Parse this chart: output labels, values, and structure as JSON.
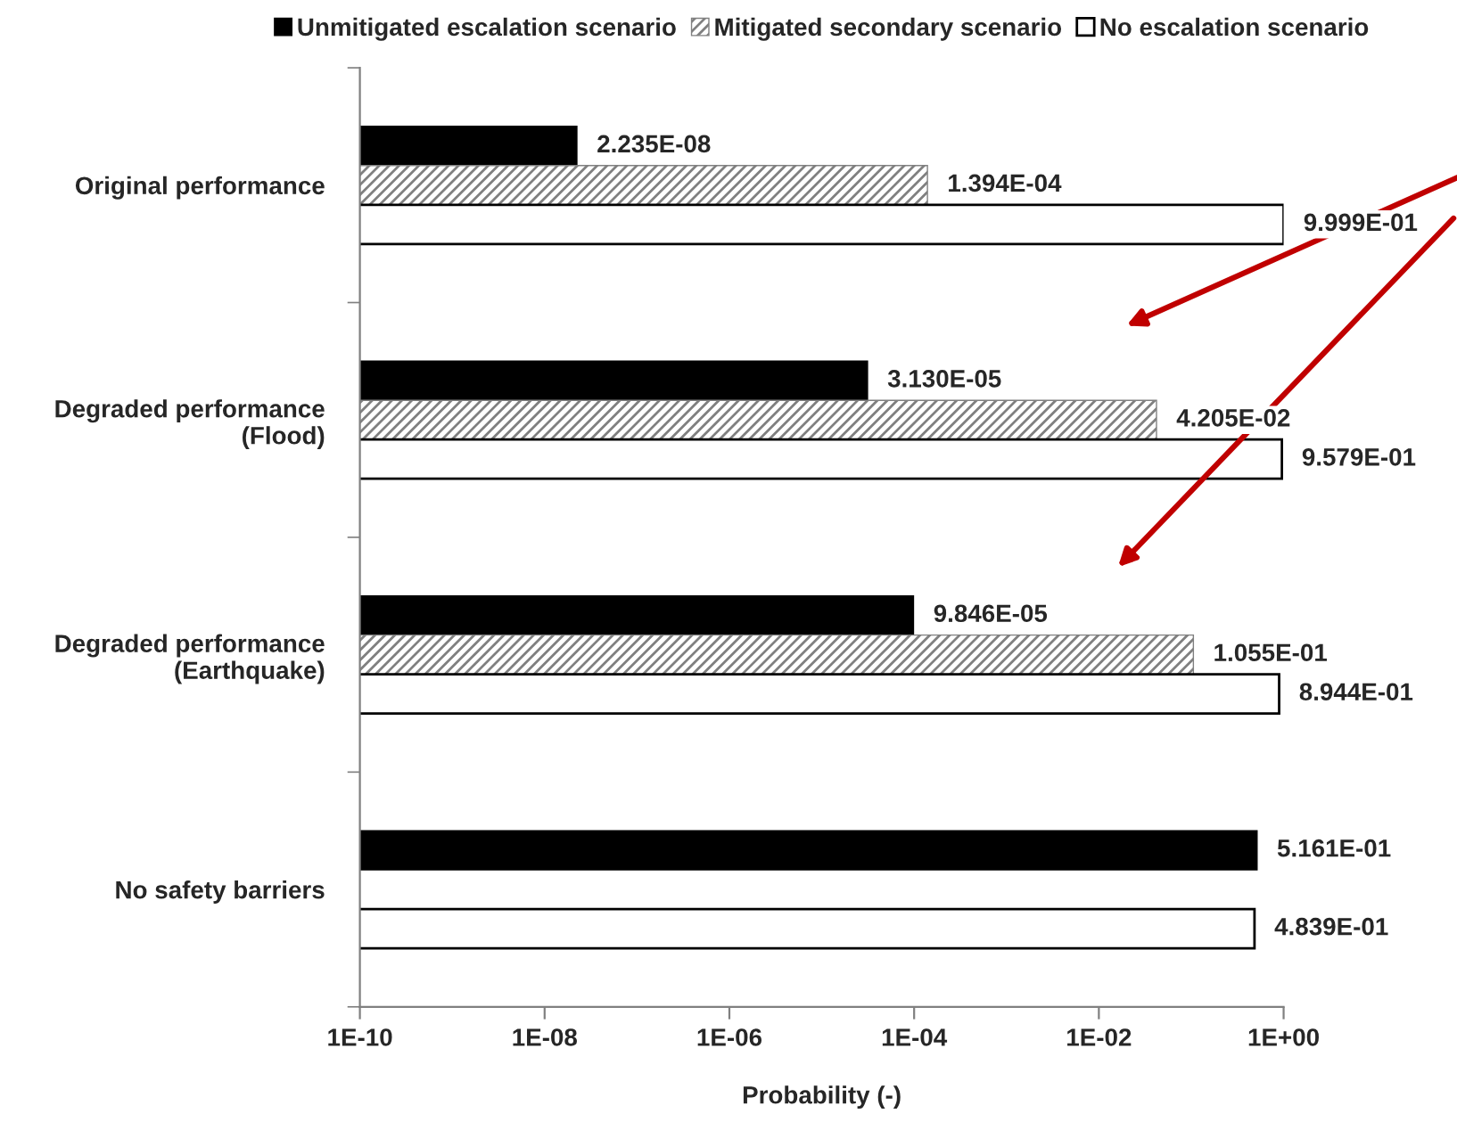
{
  "chart_data": {
    "type": "bar",
    "orientation": "horizontal",
    "log": "x",
    "categories": [
      "Original performance",
      "Degraded performance\n(Flood)",
      "Degraded performance\n(Earthquake)",
      "No safety barriers"
    ],
    "series": [
      {
        "name": "Unmitigated escalation scenario",
        "color": "#000000",
        "values": [
          2.235e-08,
          3.13e-05,
          9.846e-05,
          0.5161
        ],
        "value_labels": [
          "2.235E-08",
          "3.130E-05",
          "9.846E-05",
          "5.161E-01"
        ]
      },
      {
        "name": "Mitigated secondary scenario",
        "color": "#808080",
        "values": [
          0.0001394,
          0.04205,
          0.1055,
          null
        ],
        "value_labels": [
          "1.394E-04",
          "4.205E-02",
          "1.055E-01",
          null
        ]
      },
      {
        "name": "No escalation scenario",
        "color": "#ffffff",
        "values": [
          0.9999,
          0.9579,
          0.8944,
          0.4839
        ],
        "value_labels": [
          "9.999E-01",
          "9.579E-01",
          "8.944E-01",
          "4.839E-01"
        ]
      }
    ],
    "xlabel": "Probability (-)",
    "xlim": [
      1e-10,
      1
    ],
    "xticks": [
      {
        "value": 1e-10,
        "label": "1E-10"
      },
      {
        "value": 1e-08,
        "label": "1E-08"
      },
      {
        "value": 1e-06,
        "label": "1E-06"
      },
      {
        "value": 0.0001,
        "label": "1E-04"
      },
      {
        "value": 0.01,
        "label": "1E-02"
      },
      {
        "value": 1,
        "label": "1E+00"
      }
    ],
    "legend": "top",
    "grid": false
  }
}
